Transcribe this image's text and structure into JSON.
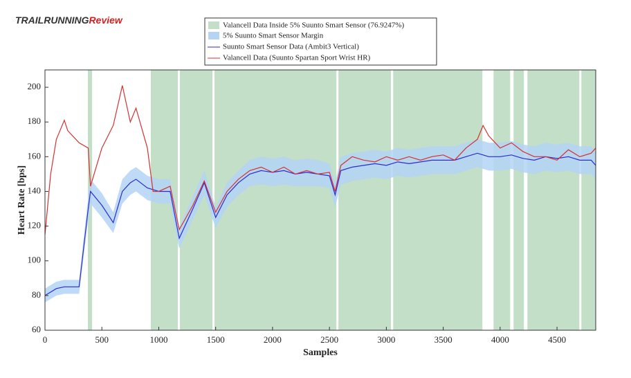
{
  "watermark": [
    "TRAILRUNNING",
    "Review"
  ],
  "chart_data": {
    "type": "line",
    "xlabel": "Samples",
    "ylabel": "Heart Rate [bps]",
    "xlim": [
      0,
      4840
    ],
    "ylim": [
      60,
      210
    ],
    "xticks": [
      0,
      500,
      1000,
      1500,
      2000,
      2500,
      3000,
      3500,
      4000,
      4500
    ],
    "yticks": [
      60,
      80,
      100,
      120,
      140,
      160,
      180,
      200
    ],
    "regions": {
      "name": "Valancell Data Inside 5% Suunto Smart Sensor (76.9247%)",
      "color": "#c3dfc8",
      "spans": [
        [
          377,
          414
        ],
        [
          930,
          1168
        ],
        [
          1186,
          1472
        ],
        [
          1490,
          2561
        ],
        [
          2579,
          3041
        ],
        [
          3060,
          3844
        ],
        [
          3942,
          4088
        ],
        [
          4118,
          4209
        ],
        [
          4240,
          4696
        ],
        [
          4714,
          4840
        ]
      ]
    },
    "x": [
      0,
      50,
      100,
      170,
      200,
      300,
      380,
      400,
      500,
      600,
      680,
      750,
      800,
      900,
      950,
      1000,
      1100,
      1180,
      1300,
      1400,
      1500,
      1600,
      1700,
      1800,
      1900,
      2000,
      2100,
      2200,
      2300,
      2400,
      2500,
      2550,
      2600,
      2700,
      2800,
      2900,
      3000,
      3100,
      3200,
      3300,
      3400,
      3500,
      3600,
      3700,
      3800,
      3850,
      3900,
      4000,
      4100,
      4200,
      4300,
      4400,
      4500,
      4600,
      4700,
      4800,
      4840
    ],
    "band": {
      "name": "5% Suunto Smart Sensor Margin",
      "color": "#b4d3f5",
      "upper": [
        84,
        86,
        88,
        89,
        89,
        89,
        137,
        147,
        139,
        128,
        147,
        152,
        154,
        149,
        148,
        147,
        147,
        119,
        137,
        152,
        131,
        145,
        152,
        158,
        160,
        159,
        160,
        158,
        159,
        158,
        156,
        145,
        160,
        162,
        163,
        164,
        163,
        165,
        164,
        165,
        166,
        166,
        166,
        168,
        170,
        169,
        168,
        168,
        169,
        167,
        166,
        168,
        167,
        168,
        166,
        166,
        163
      ],
      "lower": [
        76,
        78,
        80,
        81,
        81,
        81,
        124,
        133,
        125,
        116,
        133,
        138,
        140,
        135,
        134,
        133,
        133,
        107,
        124,
        138,
        119,
        131,
        138,
        143,
        144,
        143,
        144,
        143,
        143,
        143,
        142,
        131,
        144,
        146,
        147,
        148,
        147,
        149,
        148,
        149,
        150,
        150,
        150,
        152,
        154,
        153,
        152,
        152,
        153,
        151,
        150,
        152,
        151,
        152,
        150,
        150,
        147
      ]
    },
    "series": [
      {
        "name": "Suunto Smart Sensor Data (Ambit3 Vertical)",
        "color": "#2b2bd0",
        "values": [
          80,
          82,
          84,
          85,
          85,
          85,
          130,
          140,
          132,
          122,
          140,
          145,
          147,
          142,
          141,
          140,
          140,
          113,
          130,
          145,
          125,
          138,
          145,
          150,
          152,
          151,
          152,
          150,
          151,
          150,
          149,
          138,
          152,
          154,
          155,
          156,
          155,
          157,
          156,
          157,
          158,
          158,
          158,
          160,
          162,
          161,
          160,
          160,
          161,
          159,
          158,
          160,
          159,
          160,
          158,
          158,
          155
        ]
      },
      {
        "name": "Valancell Data (Suunto Spartan Sport Wrist HR)",
        "color": "#d63030",
        "values": [
          115,
          150,
          170,
          181,
          175,
          168,
          165,
          143,
          165,
          178,
          201,
          180,
          188,
          165,
          140,
          140,
          143,
          118,
          132,
          146,
          128,
          140,
          147,
          152,
          154,
          151,
          154,
          150,
          152,
          150,
          151,
          140,
          155,
          160,
          158,
          157,
          160,
          158,
          160,
          158,
          160,
          161,
          158,
          165,
          170,
          178,
          172,
          165,
          168,
          163,
          160,
          160,
          158,
          164,
          160,
          162,
          165
        ]
      }
    ]
  }
}
